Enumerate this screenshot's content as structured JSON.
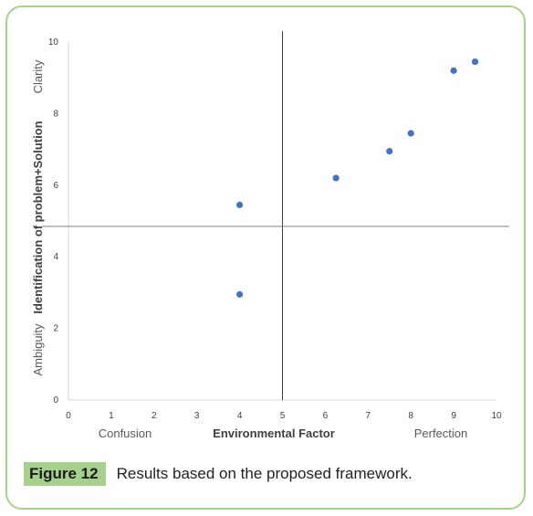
{
  "chart_data": {
    "type": "scatter",
    "x": [
      4,
      4,
      6.25,
      7.5,
      8,
      9,
      9.5
    ],
    "y": [
      2.95,
      5.45,
      6.2,
      6.95,
      7.45,
      9.2,
      9.45
    ],
    "xlim": [
      0,
      10
    ],
    "ylim": [
      0,
      10
    ],
    "xticks": [
      0,
      1,
      2,
      3,
      4,
      5,
      6,
      7,
      8,
      9,
      10
    ],
    "yticks": [
      0,
      2,
      4,
      6,
      8,
      10
    ],
    "xlabel": "Environmental Factor",
    "xlabel_left": "Confusion",
    "xlabel_right": "Perfection",
    "ylabel": "Identification of problem+Solution",
    "ylabel_low": "Ambiguity",
    "ylabel_high": "Clarity",
    "reference_lines": {
      "x": 5,
      "y": 4.85
    },
    "marker_color": "#4472c4",
    "grid": false
  },
  "caption": {
    "label": "Figure 12",
    "text": "Results based on the proposed framework."
  }
}
